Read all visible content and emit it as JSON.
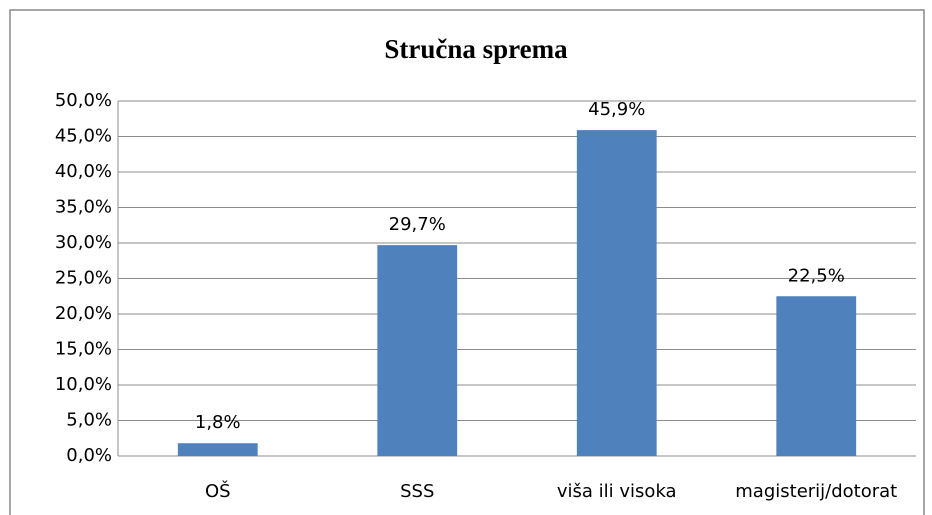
{
  "chart_data": {
    "type": "bar",
    "title": "Stručna sprema",
    "categories": [
      "OŠ",
      "SSS",
      "viša ili visoka",
      "magisterij/dotorat"
    ],
    "values": [
      1.8,
      29.7,
      45.9,
      22.5
    ],
    "value_labels": [
      "1,8%",
      "29,7%",
      "45,9%",
      "22,5%"
    ],
    "color": "#4f81bd",
    "ylim": [
      0,
      50
    ],
    "yticks": [
      {
        "value": 0,
        "label": "0,0%"
      },
      {
        "value": 5,
        "label": "5,0%"
      },
      {
        "value": 10,
        "label": "10,0%"
      },
      {
        "value": 15,
        "label": "15,0%"
      },
      {
        "value": 20,
        "label": "20,0%"
      },
      {
        "value": 25,
        "label": "25,0%"
      },
      {
        "value": 30,
        "label": "30,0%"
      },
      {
        "value": 35,
        "label": "35,0%"
      },
      {
        "value": 40,
        "label": "40,0%"
      },
      {
        "value": 45,
        "label": "45,0%"
      },
      {
        "value": 50,
        "label": "50,0%"
      }
    ],
    "grid": true
  }
}
